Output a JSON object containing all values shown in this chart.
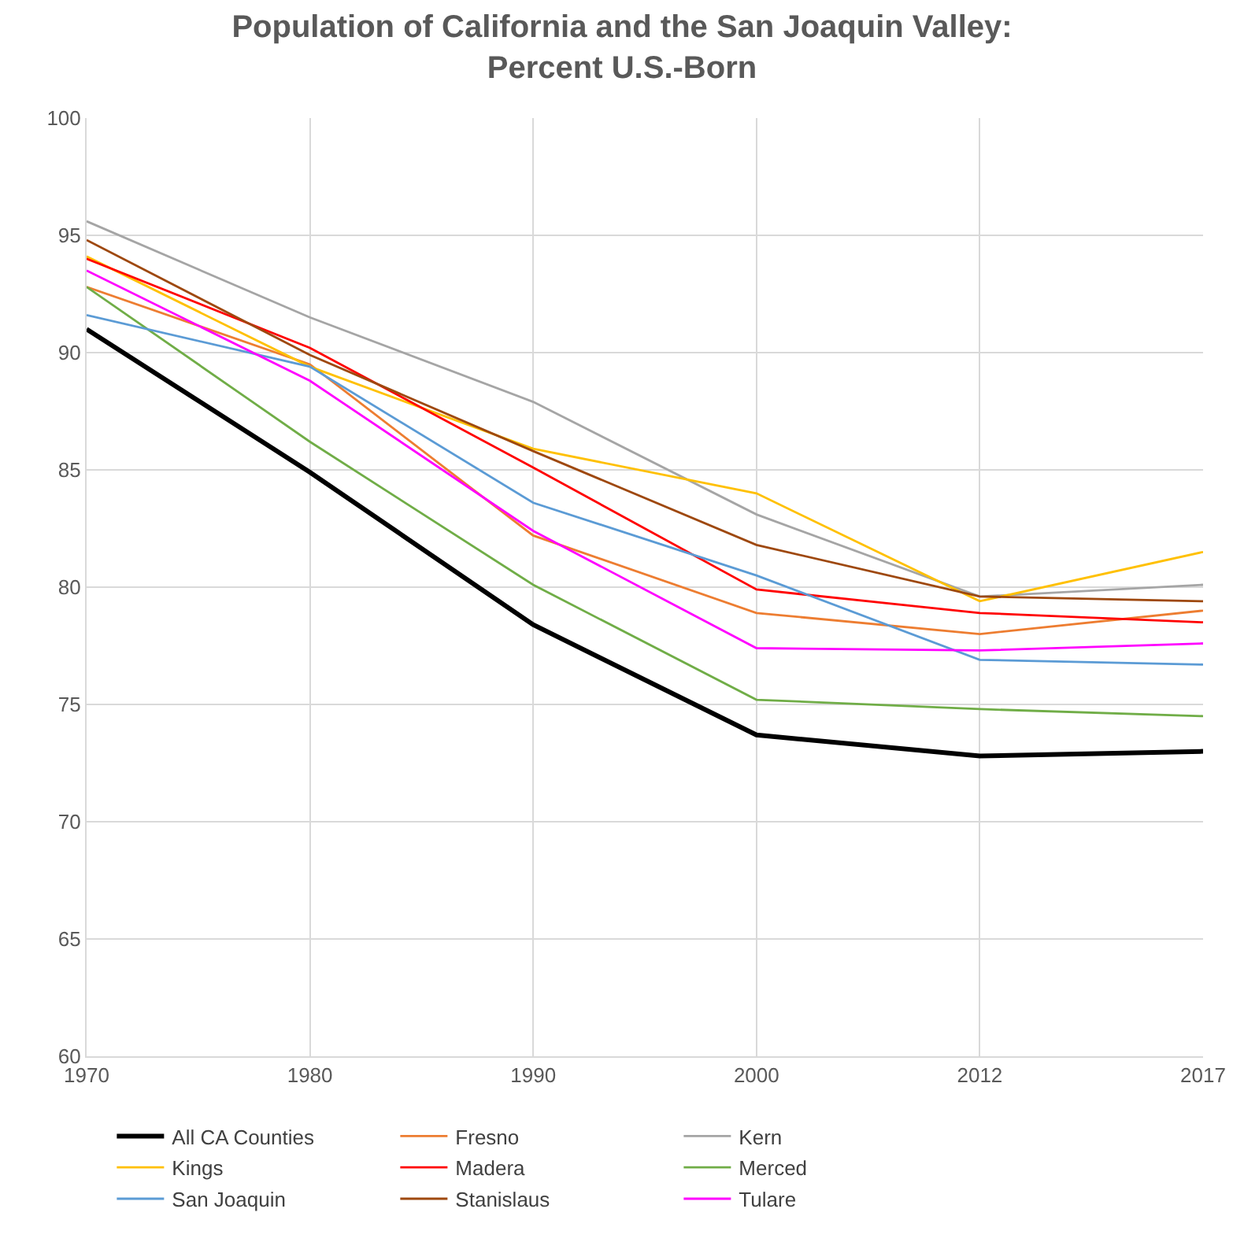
{
  "chart_data": {
    "type": "line",
    "title": "Population of California and the San Joaquin Valley:\nPercent U.S.-Born",
    "categories": [
      "1970",
      "1980",
      "1990",
      "2000",
      "2012",
      "2017"
    ],
    "series": [
      {
        "name": "All CA Counties",
        "color": "#000000",
        "values": [
          91.0,
          84.9,
          78.4,
          73.7,
          72.8,
          73.0
        ]
      },
      {
        "name": "Fresno",
        "color": "#ed7d31",
        "values": [
          92.8,
          89.5,
          82.2,
          78.9,
          78.0,
          79.0
        ]
      },
      {
        "name": "Kern",
        "color": "#a5a5a5",
        "values": [
          95.6,
          91.5,
          87.9,
          83.1,
          79.6,
          80.1
        ]
      },
      {
        "name": "Kings",
        "color": "#ffc000",
        "values": [
          94.1,
          89.4,
          85.9,
          84.0,
          79.4,
          81.5
        ]
      },
      {
        "name": "Madera",
        "color": "#ff0000",
        "values": [
          94.0,
          90.2,
          85.1,
          79.9,
          78.9,
          78.5
        ]
      },
      {
        "name": "Merced",
        "color": "#70ad47",
        "values": [
          92.8,
          86.2,
          80.1,
          75.2,
          74.8,
          74.5
        ]
      },
      {
        "name": "San Joaquin",
        "color": "#5b9bd5",
        "values": [
          91.6,
          89.4,
          83.6,
          80.5,
          76.9,
          76.7
        ]
      },
      {
        "name": "Stanislaus",
        "color": "#9e480e",
        "values": [
          94.8,
          89.9,
          85.8,
          81.8,
          79.6,
          79.4
        ]
      },
      {
        "name": "Tulare",
        "color": "#ff00ff",
        "values": [
          93.5,
          88.8,
          82.4,
          77.4,
          77.3,
          77.6
        ]
      }
    ],
    "ylim": [
      60,
      100
    ],
    "yticks": [
      60,
      65,
      70,
      75,
      80,
      85,
      90,
      95,
      100
    ],
    "grid": true,
    "legend": "bottom",
    "marker": "none",
    "line_style": "solid"
  }
}
